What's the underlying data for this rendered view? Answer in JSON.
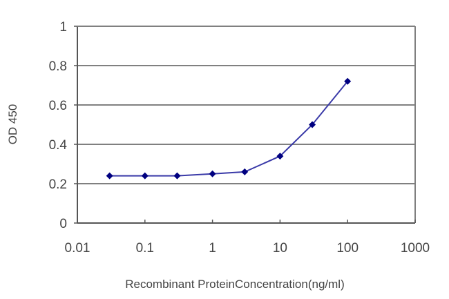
{
  "chart_data": {
    "type": "line",
    "title": "",
    "xlabel": "Recombinant ProteinConcentration(ng/ml)",
    "ylabel": "OD 450",
    "xscale": "log",
    "xlim": [
      0.01,
      1000
    ],
    "ylim": [
      0,
      1
    ],
    "x_ticks": [
      0.01,
      0.1,
      1,
      10,
      100,
      1000
    ],
    "x_tick_labels": [
      "0.01",
      "0.1",
      "1",
      "10",
      "100",
      "1000"
    ],
    "y_ticks": [
      0,
      0.2,
      0.4,
      0.6,
      0.8,
      1
    ],
    "y_tick_labels": [
      "0",
      "0.2",
      "0.4",
      "0.6",
      "0.8",
      "1"
    ],
    "grid": "horizontal",
    "legend": "none",
    "series": [
      {
        "name": "OD 450",
        "x": [
          0.03,
          0.1,
          0.3,
          1,
          3,
          10,
          30,
          100
        ],
        "values": [
          0.24,
          0.24,
          0.24,
          0.25,
          0.26,
          0.34,
          0.5,
          0.72
        ],
        "marker": "diamond",
        "marker_color": "#000080",
        "line_color": "#3a3aa8"
      }
    ]
  },
  "colors": {
    "axis": "#555555",
    "grid": "#808080",
    "background": "#ffffff"
  }
}
